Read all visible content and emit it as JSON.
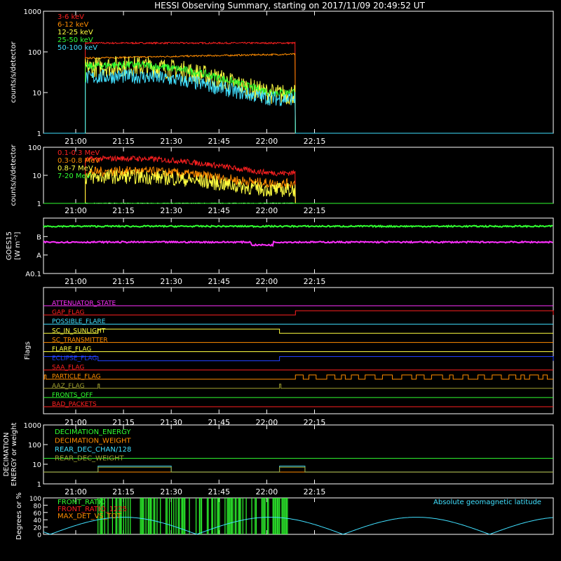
{
  "title": "HESSI Observing Summary, starting on 2017/11/09 20:49:52 UT",
  "time_ticks": [
    "21:00",
    "21:15",
    "21:30",
    "21:45",
    "22:00",
    "22:15"
  ],
  "chart_data": [
    {
      "id": "lightcurves-low",
      "type": "line",
      "ylabel": "counts/s/detector",
      "yscale": "log",
      "ylim": [
        1,
        1000
      ],
      "ytick_labels": [
        "1",
        "10",
        "100",
        "1000"
      ],
      "data_interval": [
        "21:03",
        "22:09"
      ],
      "series": [
        {
          "name": "3-6 keV",
          "color": "#ff2020",
          "profile": "flat",
          "levels": [
            165,
            165
          ]
        },
        {
          "name": "6-12 keV",
          "color": "#ff8c00",
          "profile": "ramp",
          "levels": [
            70,
            88
          ]
        },
        {
          "name": "12-25 keV",
          "color": "#ffff40",
          "profile": "orbit",
          "levels": [
            45,
            9
          ]
        },
        {
          "name": "25-50 keV",
          "color": "#30ff30",
          "profile": "orbit",
          "levels": [
            48,
            10
          ]
        },
        {
          "name": "50-100 keV",
          "color": "#40e0ff",
          "profile": "orbit",
          "levels": [
            25,
            7
          ]
        }
      ]
    },
    {
      "id": "lightcurves-high",
      "type": "line",
      "ylabel": "counts/s/detector",
      "yscale": "log",
      "ylim": [
        1,
        100
      ],
      "ytick_labels": [
        "1",
        "10",
        "100"
      ],
      "data_interval": [
        "21:03",
        "22:09"
      ],
      "series": [
        {
          "name": "0.1-0.3 MeV",
          "color": "#ff2020",
          "profile": "orbit",
          "levels": [
            40,
            12
          ]
        },
        {
          "name": "0.3-0.8 MeV",
          "color": "#ff8c00",
          "profile": "orbit",
          "levels": [
            14,
            5
          ]
        },
        {
          "name": "0.8-7 MeV",
          "color": "#ffff40",
          "profile": "orbit",
          "levels": [
            9,
            3
          ]
        },
        {
          "name": "7-20 MeV",
          "color": "#30ff30",
          "profile": "flat",
          "levels": [
            1,
            1
          ]
        }
      ]
    },
    {
      "id": "goes",
      "type": "line",
      "ylabel": "GOES15",
      "yunit": "W m⁻²",
      "yscale": "log",
      "ylim": [
        1e-09,
        1e-06
      ],
      "ytick_labels": [
        "B",
        "A",
        "A0.1"
      ],
      "series": [
        {
          "color": "#30ff30",
          "level": 3.6e-07
        },
        {
          "color": "#ff30ff",
          "level": 5e-08
        }
      ]
    },
    {
      "id": "flags",
      "type": "line",
      "ylabel": "Flags",
      "flags": [
        {
          "name": "ATTENUATOR_STATE",
          "color": "#ff30ff",
          "steps": []
        },
        {
          "name": "GAP_FLAG",
          "color": "#ff2020",
          "steps": [
            [
              "22:09",
              "23:30"
            ]
          ]
        },
        {
          "name": "POSSIBLE_FLARE",
          "color": "#40e0ff",
          "steps": []
        },
        {
          "name": "SC_IN_SUNLIGHT",
          "color": "#ffff40",
          "steps": [
            [
              "21:07",
              "22:04"
            ]
          ]
        },
        {
          "name": "SC_TRANSMITTER",
          "color": "#ff8c00",
          "steps": []
        },
        {
          "name": "FLARE_FLAG",
          "color": "#ffff40",
          "steps": []
        },
        {
          "name": "ECLIPSE_FLAG",
          "color": "#2040ff",
          "steps": [
            [
              "20:49",
              "21:07"
            ],
            [
              "22:04",
              "23:30"
            ]
          ]
        },
        {
          "name": "SAA_FLAG",
          "color": "#ff2020",
          "steps": []
        },
        {
          "name": "PARTICLE_FLAG",
          "color": "#ff8c00",
          "steps": [
            [
              "22:09",
              "23:30"
            ]
          ]
        },
        {
          "name": "AAZ_FLAG",
          "color": "#a0a030",
          "steps": [
            [
              "21:07",
              "21:07"
            ],
            [
              "22:04",
              "22:04"
            ]
          ]
        },
        {
          "name": "FRONTS_OFF",
          "color": "#30ff30",
          "steps": []
        },
        {
          "name": "BAD_PACKETS",
          "color": "#ff2020",
          "steps": []
        }
      ]
    },
    {
      "id": "decimation",
      "type": "line",
      "ylabel": "DECIMATION ENERGY or weight",
      "yscale": "log",
      "ylim": [
        1,
        1000
      ],
      "ytick_labels": [
        "1",
        "10",
        "100",
        "1000"
      ],
      "series": [
        {
          "name": "DECIMATION_ENERGY",
          "color": "#30ff30",
          "level": 20
        },
        {
          "name": "DECIMATION_WEIGHT",
          "color": "#ff8c00",
          "level": 4
        },
        {
          "name": "REAR_DEC_CHAN/128",
          "color": "#40e0ff",
          "level": 8,
          "intervals": [
            [
              "21:07",
              "21:30"
            ],
            [
              "22:04",
              "22:12"
            ]
          ]
        },
        {
          "name": "REAR_DEC_WEIGHT",
          "color": "#a0a030",
          "level": 7,
          "intervals": [
            [
              "21:07",
              "21:30"
            ],
            [
              "22:04",
              "22:12"
            ]
          ]
        }
      ]
    },
    {
      "id": "ratios",
      "type": "line",
      "ylabel": "Degrees or %",
      "ylim": [
        0,
        100
      ],
      "ytick_labels": [
        "0",
        "20",
        "40",
        "60",
        "80",
        "100"
      ],
      "series": [
        {
          "name": "FRONT_RATIO",
          "color": "#30ff30"
        },
        {
          "name": "FRONT_RATIO_1225",
          "color": "#ff2020"
        },
        {
          "name": "MAX_DET_VS_TOT",
          "color": "#ff8c00"
        }
      ],
      "annotation": {
        "text": "Absolute geomagnetic latitude",
        "color": "#40e0ff",
        "max": 47
      }
    }
  ]
}
